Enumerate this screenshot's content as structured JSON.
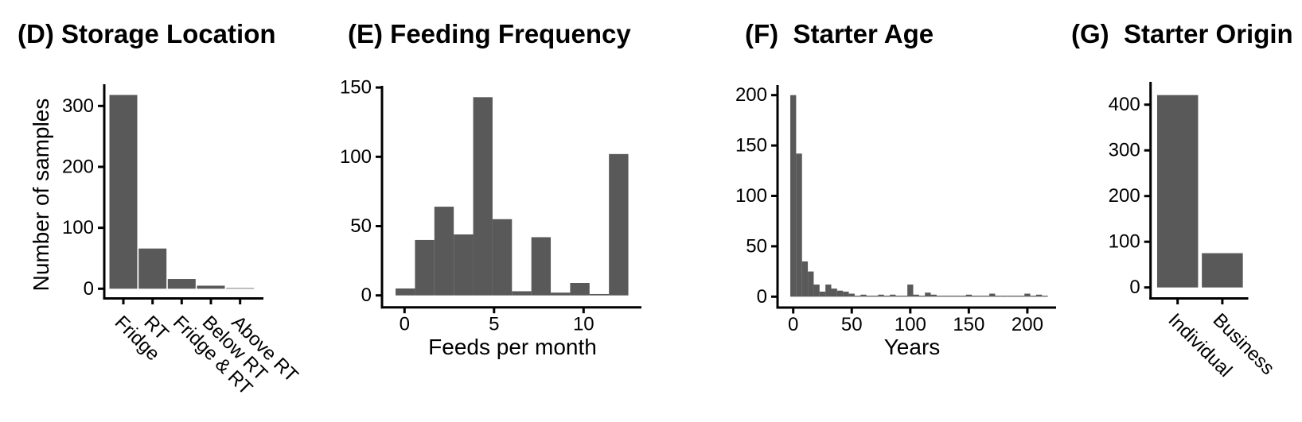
{
  "figure": {
    "background": "#ffffff",
    "bar_color": "#595959",
    "axis_color": "#000000",
    "text_color": "#000000"
  },
  "chart_data": [
    {
      "id": "D",
      "type": "bar",
      "title": "(D) Storage Location",
      "ylabel": "Number of samples",
      "categories": [
        "Fridge",
        "RT",
        "Fridge & RT",
        "Below RT",
        "Above RT"
      ],
      "values": [
        318,
        66,
        16,
        5,
        1
      ],
      "yticks": [
        0,
        100,
        200,
        300
      ],
      "ylim": [
        0,
        330
      ],
      "grid": false,
      "legend": "none"
    },
    {
      "id": "E",
      "type": "bar",
      "subtype": "histogram",
      "title": "(E) Feeding Frequency",
      "xlabel": "Feeds per month",
      "bin_start": -0.5,
      "bin_width": 1.0833,
      "counts": [
        5,
        40,
        64,
        44,
        143,
        55,
        3,
        42,
        2,
        9,
        1,
        102
      ],
      "xticks": [
        0,
        5,
        10
      ],
      "yticks": [
        0,
        50,
        100,
        150
      ],
      "xlim": [
        -1.3,
        13.2
      ],
      "ylim": [
        0,
        158
      ],
      "grid": false,
      "legend": "none"
    },
    {
      "id": "F",
      "type": "bar",
      "subtype": "histogram",
      "title": "(F)  Starter Age",
      "xlabel": "Years",
      "bin_width": 5,
      "bin_centers": [
        0,
        5,
        10,
        15,
        20,
        25,
        30,
        35,
        40,
        45,
        50,
        55,
        60,
        65,
        70,
        75,
        80,
        85,
        90,
        95,
        100,
        105,
        110,
        115,
        120,
        125,
        130,
        135,
        140,
        145,
        150,
        155,
        160,
        165,
        170,
        175,
        180,
        185,
        190,
        195,
        200,
        205,
        210,
        215
      ],
      "counts": [
        200,
        142,
        35,
        25,
        12,
        5,
        12,
        8,
        6,
        5,
        3,
        1,
        2,
        1,
        1,
        2,
        1,
        2,
        1,
        1,
        12,
        2,
        1,
        4,
        2,
        1,
        1,
        1,
        1,
        1,
        2,
        1,
        1,
        1,
        3,
        1,
        1,
        1,
        1,
        1,
        3,
        1,
        2,
        1
      ],
      "xticks": [
        0,
        50,
        100,
        150,
        200
      ],
      "yticks": [
        0,
        50,
        100,
        150,
        200
      ],
      "xlim": [
        -13.5,
        224.5
      ],
      "ylim": [
        0,
        211
      ],
      "grid": false,
      "legend": "none"
    },
    {
      "id": "G",
      "type": "bar",
      "title": "(G)  Starter Origin",
      "categories": [
        "Individual",
        "Business"
      ],
      "values": [
        421,
        75
      ],
      "yticks": [
        0,
        100,
        200,
        300,
        400
      ],
      "ylim": [
        0,
        430
      ],
      "grid": false,
      "legend": "none"
    }
  ]
}
